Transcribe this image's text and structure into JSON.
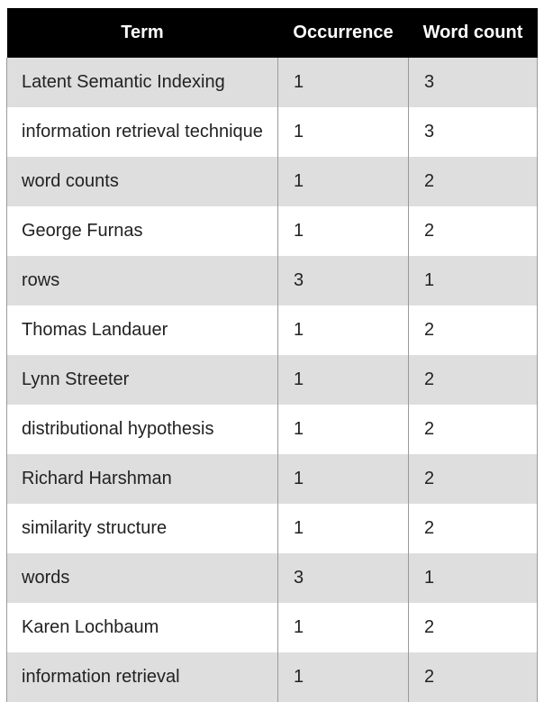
{
  "table": {
    "headers": [
      "Term",
      "Occurrence",
      "Word count"
    ],
    "rows": [
      {
        "term": "Latent Semantic Indexing",
        "occurrence": "1",
        "word_count": "3"
      },
      {
        "term": "information retrieval technique",
        "occurrence": "1",
        "word_count": "3"
      },
      {
        "term": "word counts",
        "occurrence": "1",
        "word_count": "2"
      },
      {
        "term": "George Furnas",
        "occurrence": "1",
        "word_count": "2"
      },
      {
        "term": "rows",
        "occurrence": "3",
        "word_count": "1"
      },
      {
        "term": "Thomas Landauer",
        "occurrence": "1",
        "word_count": "2"
      },
      {
        "term": "Lynn Streeter",
        "occurrence": "1",
        "word_count": "2"
      },
      {
        "term": "distributional hypothesis",
        "occurrence": "1",
        "word_count": "2"
      },
      {
        "term": "Richard Harshman",
        "occurrence": "1",
        "word_count": "2"
      },
      {
        "term": "similarity structure",
        "occurrence": "1",
        "word_count": "2"
      },
      {
        "term": "words",
        "occurrence": "3",
        "word_count": "1"
      },
      {
        "term": "Karen Lochbaum",
        "occurrence": "1",
        "word_count": "2"
      },
      {
        "term": "information retrieval",
        "occurrence": "1",
        "word_count": "2"
      }
    ]
  }
}
